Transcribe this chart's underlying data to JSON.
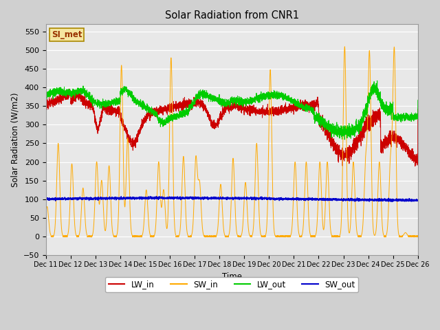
{
  "title": "Solar Radiation from CNR1",
  "xlabel": "Time",
  "ylabel": "Solar Radiation (W/m2)",
  "ylim": [
    -50,
    570
  ],
  "yticks": [
    -50,
    0,
    50,
    100,
    150,
    200,
    250,
    300,
    350,
    400,
    450,
    500,
    550
  ],
  "plot_bg_color": "#e8e8e8",
  "fig_bg_color": "#d0d0d0",
  "colors": {
    "LW_in": "#cc0000",
    "SW_in": "#ffaa00",
    "LW_out": "#00cc00",
    "SW_out": "#0000cc"
  },
  "annotation": "SI_met",
  "annotation_color": "#993300",
  "annotation_bg": "#f5e6a0",
  "annotation_edge": "#aa8800",
  "n_points": 5000,
  "tick_labels": [
    "Dec 11",
    "Dec 12",
    "Dec 13",
    "Dec 14",
    "Dec 15",
    "Dec 16",
    "Dec 17",
    "Dec 18",
    "Dec 19",
    "Dec 20",
    "Dec 21",
    "Dec 22",
    "Dec 23",
    "Dec 24",
    "Dec 25",
    "Dec 26"
  ],
  "sw_in_peaks": [
    0.05,
    0.5,
    1.05,
    1.5,
    2.05,
    2.25,
    2.55,
    3.05,
    3.3,
    4.05,
    4.55,
    4.75,
    5.05,
    5.55,
    6.05,
    6.2,
    7.05,
    7.55,
    8.05,
    8.5,
    9.05,
    10.05,
    10.5,
    11.05,
    11.35,
    12.05,
    12.4,
    12.9,
    13.05,
    13.45,
    13.9,
    14.05,
    14.5
  ],
  "sw_in_heights": [
    80,
    250,
    195,
    130,
    200,
    150,
    190,
    460,
    265,
    125,
    200,
    125,
    480,
    215,
    210,
    140,
    140,
    210,
    145,
    250,
    448,
    200,
    200,
    200,
    200,
    510,
    200,
    200,
    490,
    200,
    200,
    500,
    10
  ]
}
